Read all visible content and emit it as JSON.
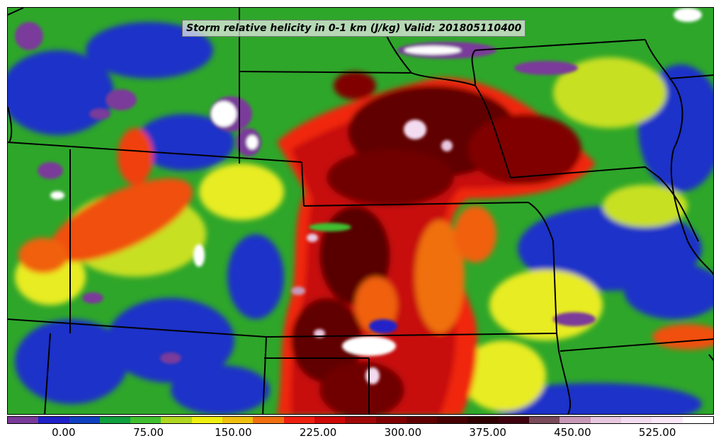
{
  "title": "Storm relative helicity in 0-1 km (J/kg) Valid: 201805110400",
  "colorbar": {
    "colors": [
      "#7a3a9a",
      "#2020c8",
      "#1040c0",
      "#10a040",
      "#40c030",
      "#b0d820",
      "#f0f010",
      "#f0c010",
      "#f07010",
      "#f02010",
      "#d00808",
      "#a00808",
      "#800000",
      "#600000",
      "#480000",
      "#300000",
      "#400010",
      "#7a4a5a",
      "#c898b8",
      "#e8c8e0",
      "#f4dcf0",
      "#fae8f8",
      "#ffffff"
    ],
    "tick_labels": [
      "0.00",
      "75.00",
      "150.00",
      "225.00",
      "300.00",
      "375.00",
      "450.00",
      "525.00"
    ],
    "tick_values": [
      0,
      75,
      150,
      225,
      300,
      375,
      450,
      525
    ],
    "range": [
      -50,
      575
    ]
  }
}
